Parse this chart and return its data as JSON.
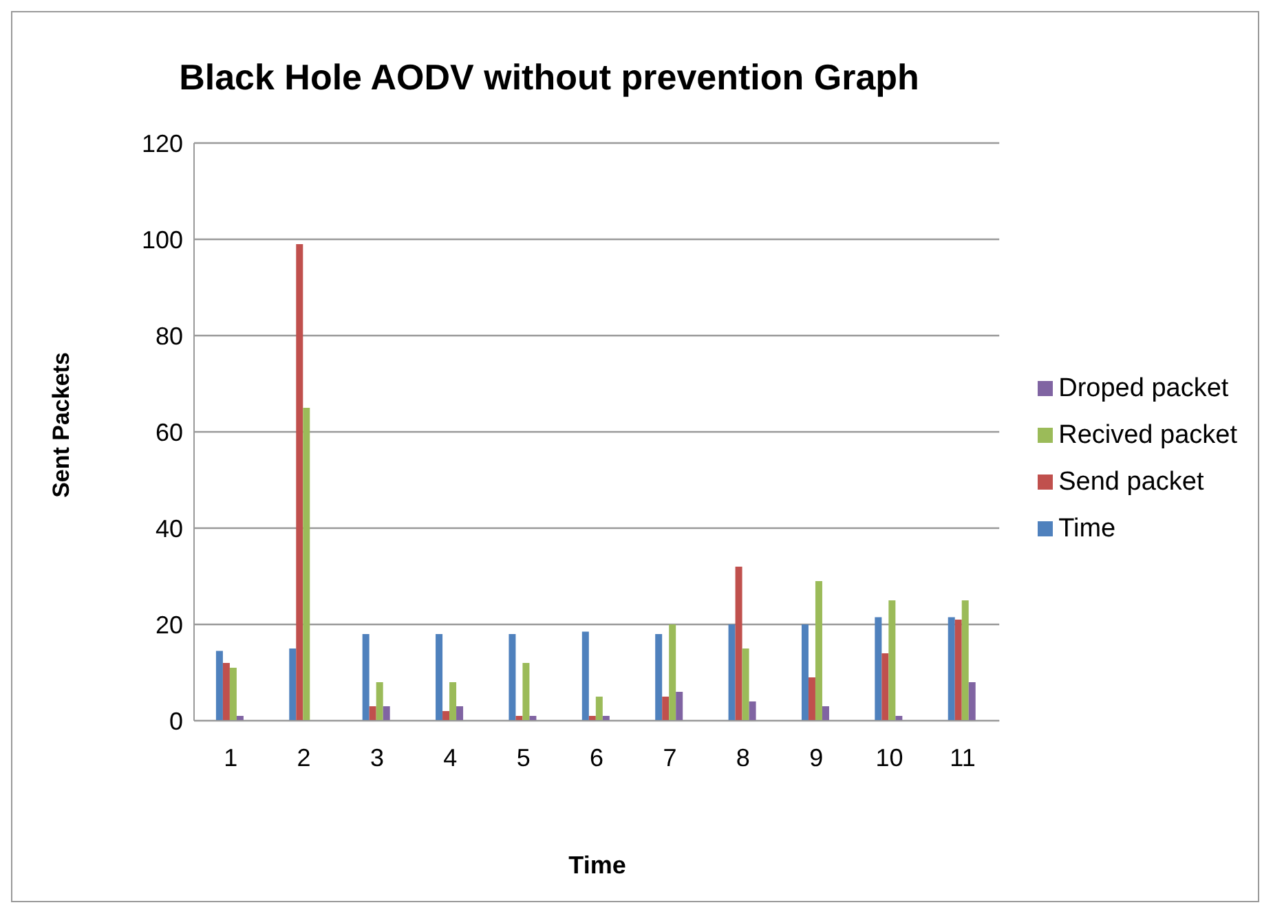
{
  "chart_data": {
    "type": "bar",
    "title": "Black Hole AODV without prevention Graph",
    "xlabel": "Time",
    "ylabel": "Sent Packets",
    "categories": [
      "1",
      "2",
      "3",
      "4",
      "5",
      "6",
      "7",
      "8",
      "9",
      "10",
      "11"
    ],
    "series": [
      {
        "name": "Time",
        "color": "#4f81bd",
        "values": [
          14.5,
          15,
          18,
          18,
          18,
          18.5,
          18,
          20,
          20,
          21.5,
          21.5
        ]
      },
      {
        "name": "Send packet",
        "color": "#c0504d",
        "values": [
          12,
          99,
          3,
          2,
          1,
          1,
          5,
          32,
          9,
          14,
          21
        ]
      },
      {
        "name": "Recived packet",
        "color": "#9bbb59",
        "values": [
          11,
          65,
          8,
          8,
          12,
          5,
          20,
          15,
          29,
          25,
          25
        ]
      },
      {
        "name": "Droped packet",
        "color": "#8064a2",
        "values": [
          1,
          0,
          3,
          3,
          1,
          1,
          6,
          4,
          3,
          1,
          8
        ]
      }
    ],
    "ylim": [
      0,
      120
    ],
    "yticks": [
      0,
      20,
      40,
      60,
      80,
      100,
      120
    ],
    "grid": "y",
    "legend": "right"
  }
}
